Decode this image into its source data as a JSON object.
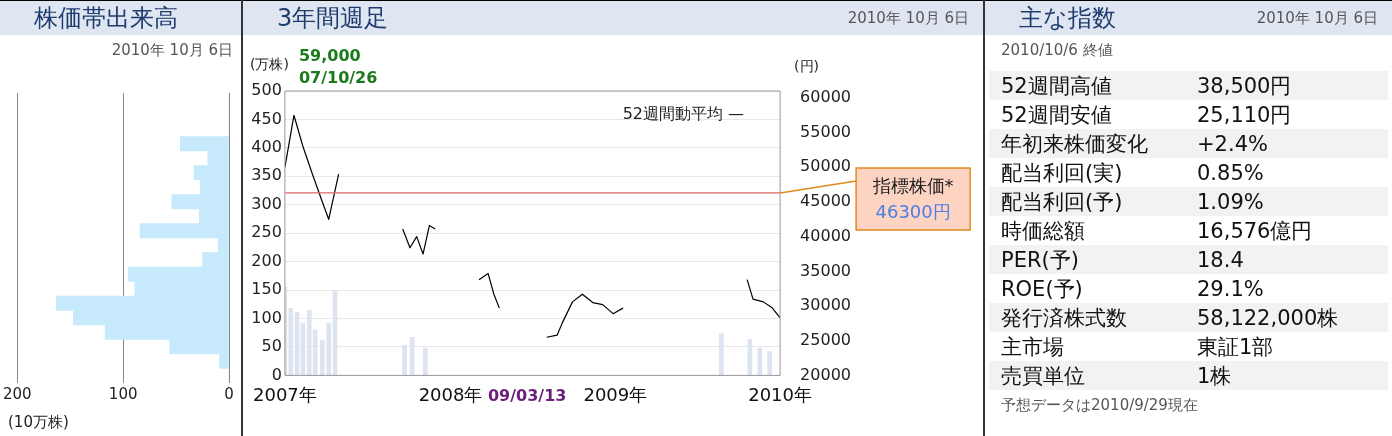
{
  "chart_data": [
    {
      "type": "bar",
      "orientation": "horizontal",
      "title": "株価帯出来高",
      "subtitle": "2010年 10月 6日",
      "xlabel": "(10万株)",
      "categories": [
        null,
        null,
        null,
        null,
        null,
        null,
        null,
        null,
        null,
        null,
        null,
        null,
        null,
        null,
        null,
        null,
        null,
        null,
        null,
        null
      ],
      "values": [
        0,
        0,
        0,
        46,
        20,
        33,
        27,
        54,
        28,
        84,
        10,
        25,
        95,
        89,
        163,
        147,
        117,
        56,
        9,
        0
      ],
      "color": "#c6e9fb",
      "xlim": [
        200,
        0
      ],
      "xticks": [
        200,
        100,
        0
      ],
      "grid": "x"
    },
    {
      "type": "line",
      "title": "3年間週足",
      "subtitle": "2010年 10月 6日",
      "ylabel": "(万株)",
      "y2label": "(円)",
      "xlim": [
        "2007-10-05",
        "2010-10-06"
      ],
      "xticks": [
        {
          "value": "2007-10-05",
          "label": "2007年"
        },
        {
          "value": "2008-10-06",
          "label": "2008年"
        },
        {
          "value": "2009-10-06",
          "label": "2009年"
        },
        {
          "value": "2010-10-06",
          "label": "2010年"
        }
      ],
      "ylim": [
        0,
        500
      ],
      "yticks": [
        0,
        50,
        100,
        150,
        200,
        250,
        300,
        350,
        400,
        450,
        500
      ],
      "y2lim": [
        20000,
        61000
      ],
      "y2ticks": [
        20000,
        25000,
        30000,
        35000,
        40000,
        45000,
        50000,
        55000,
        60000
      ],
      "grid": "y",
      "marker": "none",
      "series": [
        {
          "type": "bar",
          "color": "#dde4f0",
          "axis": "y",
          "x": [
            "2007-10-05",
            "2007-10-18",
            "2007-11-01",
            "2007-11-14",
            "2007-11-28",
            "2007-12-11",
            "2007-12-27",
            "2008-01-10",
            "2008-01-24",
            "2008-06-26",
            "2008-07-13",
            "2008-08-11",
            "2010-05-29",
            "2010-07-31",
            "2010-08-22",
            "2010-09-13"
          ],
          "values": [
            156,
            118,
            111,
            92,
            115,
            80,
            61,
            92,
            149,
            53,
            67,
            48,
            73,
            63,
            48,
            42
          ]
        },
        {
          "type": "line",
          "color": "#000000",
          "axis": "y2",
          "x": [
            "2007-10-05",
            "2007-10-25",
            "2007-11-14",
            "2007-12-05",
            "2007-12-27",
            "2008-01-10",
            "2008-02-01",
            "2008-03-01",
            "2008-06-22",
            "2008-07-08",
            "2008-07-23",
            "2008-08-06",
            "2008-08-20",
            "2008-09-02",
            "2008-10-01",
            "2008-12-08",
            "2008-12-28",
            "2009-01-10",
            "2009-01-22",
            "2009-03-01",
            "2009-05-07",
            "2009-05-30",
            "2009-06-10",
            "2009-07-03",
            "2009-07-25",
            "2009-08-17",
            "2009-09-08",
            "2009-10-01",
            "2009-10-23",
            "2009-11-15",
            "2010-07-25",
            "2010-08-07",
            "2010-08-30",
            "2010-09-19",
            "2010-10-06"
          ],
          "values": [
            50000,
            57500,
            53000,
            49000,
            45000,
            42500,
            49000,
            null,
            41100,
            38400,
            40000,
            37500,
            41600,
            41100,
            null,
            33800,
            34700,
            31700,
            29700,
            null,
            25500,
            25800,
            27500,
            30600,
            31700,
            30500,
            30200,
            28900,
            29700,
            null,
            33800,
            31000,
            30600,
            29700,
            28300
          ]
        }
      ],
      "ref_lines": [
        {
          "axis": "y2",
          "value": 46300,
          "label": "指標株価*\n46300円",
          "color": "#e06666"
        }
      ],
      "annotations": [
        "59,000\n07/10/26",
        "09/03/13",
        "52週間動平均 —"
      ]
    },
    {
      "type": "other",
      "title": "主な指数",
      "subtitle": "2010年 10月 6日",
      "categories": [
        "52週間高値",
        "52週間安値",
        "年初来株価変化",
        "配当利回(実)",
        "配当利回(予)",
        "時価総額",
        "PER(予)",
        "ROE(予)",
        "発行済株式数",
        "主市場",
        "売買単位"
      ],
      "value_labels": [
        "38,500円",
        "25,110円",
        "+2.4%",
        "0.85%",
        "1.09%",
        "16,576億円",
        "18.4",
        "29.1%",
        "58,122,000株",
        "東証1部",
        "1株"
      ],
      "annotations": [
        "2010/10/6 終値",
        "予想データは2010/9/29現在"
      ]
    }
  ]
}
